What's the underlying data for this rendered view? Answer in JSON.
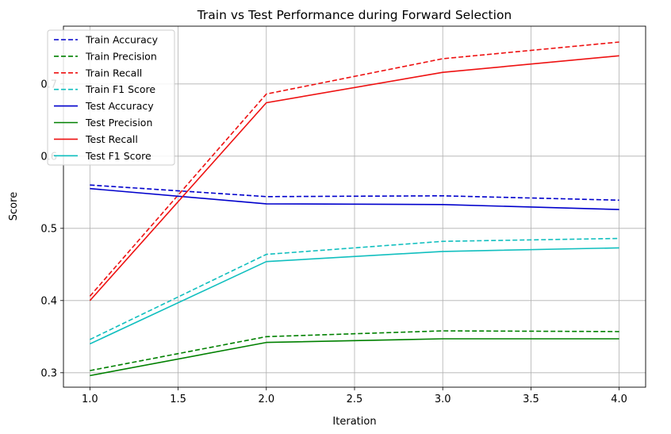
{
  "chart_data": {
    "type": "line",
    "title": "Train vs Test Performance during Forward Selection",
    "xlabel": "Iteration",
    "ylabel": "Score",
    "xlim": [
      0.85,
      4.15
    ],
    "ylim": [
      0.28,
      0.78
    ],
    "x": [
      1.0,
      2.0,
      3.0,
      4.0
    ],
    "x_ticks": [
      "1.0",
      "1.5",
      "2.0",
      "2.5",
      "3.0",
      "3.5",
      "4.0"
    ],
    "x_tick_values": [
      1.0,
      1.5,
      2.0,
      2.5,
      3.0,
      3.5,
      4.0
    ],
    "y_ticks": [
      "0.3",
      "0.4",
      "0.5",
      "0.6",
      "0.7"
    ],
    "y_tick_values": [
      0.3,
      0.4,
      0.5,
      0.6,
      0.7
    ],
    "grid": true,
    "legend_position": "top-left",
    "series": [
      {
        "name": "Train Accuracy",
        "values": [
          0.56,
          0.544,
          0.545,
          0.539
        ],
        "color": "#0000cc",
        "style": "dashed"
      },
      {
        "name": "Train Precision",
        "values": [
          0.303,
          0.35,
          0.358,
          0.357
        ],
        "color": "#008000",
        "style": "dashed"
      },
      {
        "name": "Train Recall",
        "values": [
          0.406,
          0.686,
          0.735,
          0.758
        ],
        "color": "#ee1111",
        "style": "dashed"
      },
      {
        "name": "Train F1 Score",
        "values": [
          0.346,
          0.464,
          0.482,
          0.486
        ],
        "color": "#11bfbf",
        "style": "dashed"
      },
      {
        "name": "Test Accuracy",
        "values": [
          0.555,
          0.534,
          0.533,
          0.526
        ],
        "color": "#0000cc",
        "style": "solid"
      },
      {
        "name": "Test Precision",
        "values": [
          0.296,
          0.342,
          0.347,
          0.347
        ],
        "color": "#008000",
        "style": "solid"
      },
      {
        "name": "Test Recall",
        "values": [
          0.4,
          0.674,
          0.716,
          0.739
        ],
        "color": "#ee1111",
        "style": "solid"
      },
      {
        "name": "Test F1 Score",
        "values": [
          0.34,
          0.454,
          0.468,
          0.473
        ],
        "color": "#11bfbf",
        "style": "solid"
      }
    ]
  }
}
